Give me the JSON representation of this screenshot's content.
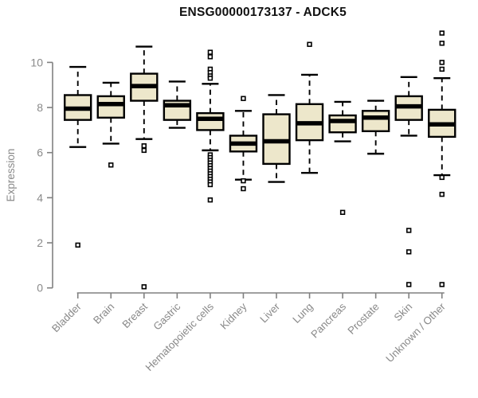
{
  "figure": {
    "title": "ENSG00000173137 - ADCK5"
  },
  "chart_data": {
    "type": "boxplot",
    "title": "ENSG00000173137 - ADCK5",
    "xlabel": "",
    "ylabel": "Expression",
    "ylim": [
      0,
      10
    ],
    "yticks": [
      0,
      2,
      4,
      6,
      8,
      10
    ],
    "grid": false,
    "legend": "none",
    "box_fill": "#EDE7CB",
    "box_stroke": "#000000",
    "axis_color": "#808080",
    "tick_label_color": "#8A8A8A",
    "title_color": "#111111",
    "categories": [
      "Bladder",
      "Brain",
      "Breast",
      "Gastric",
      "Hematopoietic cells",
      "Kidney",
      "Liver",
      "Lung",
      "Pancreas",
      "Prostate",
      "Skin",
      "Unknown / Other"
    ],
    "boxes": [
      {
        "category": "Bladder",
        "low": 6.25,
        "q1": 7.45,
        "median": 7.95,
        "q3": 8.55,
        "high": 9.8,
        "outliers": [
          1.9
        ]
      },
      {
        "category": "Brain",
        "low": 6.4,
        "q1": 7.55,
        "median": 8.15,
        "q3": 8.5,
        "high": 9.1,
        "outliers": [
          5.45
        ]
      },
      {
        "category": "Breast",
        "low": 6.6,
        "q1": 8.3,
        "median": 8.95,
        "q3": 9.5,
        "high": 10.7,
        "outliers": [
          6.3,
          6.1,
          0.05
        ]
      },
      {
        "category": "Gastric",
        "low": 7.1,
        "q1": 7.45,
        "median": 8.1,
        "q3": 8.3,
        "high": 9.15,
        "outliers": []
      },
      {
        "category": "Hematopoietic cells",
        "low": 6.1,
        "q1": 7.0,
        "median": 7.5,
        "q3": 7.75,
        "high": 9.05,
        "outliers": [
          10.45,
          10.25,
          9.7,
          9.55,
          9.4,
          9.3,
          5.9,
          5.78,
          5.66,
          5.54,
          5.42,
          5.3,
          5.18,
          5.06,
          4.94,
          4.82,
          4.7,
          4.58,
          3.9
        ]
      },
      {
        "category": "Kidney",
        "low": 4.8,
        "q1": 6.05,
        "median": 6.4,
        "q3": 6.75,
        "high": 7.85,
        "outliers": [
          8.4,
          4.75,
          4.4
        ]
      },
      {
        "category": "Liver",
        "low": 4.7,
        "q1": 5.5,
        "median": 6.5,
        "q3": 7.7,
        "high": 8.55,
        "outliers": []
      },
      {
        "category": "Lung",
        "low": 5.1,
        "q1": 6.55,
        "median": 7.3,
        "q3": 8.15,
        "high": 9.45,
        "outliers": [
          10.8
        ]
      },
      {
        "category": "Pancreas",
        "low": 6.5,
        "q1": 6.9,
        "median": 7.4,
        "q3": 7.65,
        "high": 8.25,
        "outliers": [
          3.35
        ]
      },
      {
        "category": "Prostate",
        "low": 5.95,
        "q1": 6.95,
        "median": 7.55,
        "q3": 7.85,
        "high": 8.3,
        "outliers": []
      },
      {
        "category": "Skin",
        "low": 6.75,
        "q1": 7.45,
        "median": 8.05,
        "q3": 8.5,
        "high": 9.35,
        "outliers": [
          2.55,
          1.6,
          0.15
        ]
      },
      {
        "category": "Unknown / Other",
        "low": 5.0,
        "q1": 6.7,
        "median": 7.25,
        "q3": 7.9,
        "high": 9.3,
        "outliers": [
          11.3,
          10.85,
          10.0,
          9.7,
          4.9,
          4.15,
          0.15
        ]
      }
    ]
  }
}
